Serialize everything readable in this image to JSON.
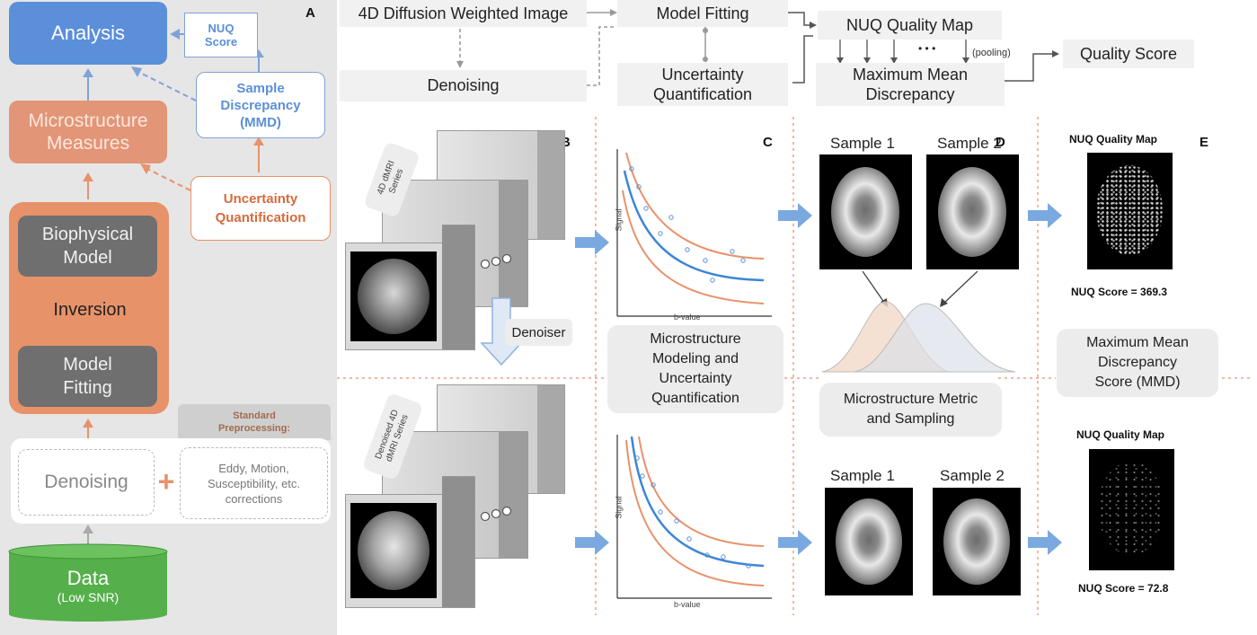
{
  "panel_letters": {
    "a": "A",
    "b": "B",
    "c": "C",
    "d": "D",
    "e": "E"
  },
  "left": {
    "analysis": "Analysis",
    "nuq_score_line1": "NUQ",
    "nuq_score_line2": "Score",
    "sample_discrepancy_line1": "Sample",
    "sample_discrepancy_line2": "Discrepancy",
    "sample_discrepancy_line3": "(MMD)",
    "microstructure_line1": "Microstructure",
    "microstructure_line2": "Measures",
    "uncertainty_line1": "Uncertainty",
    "uncertainty_line2": "Quantification",
    "biophysical_line1": "Biophysical",
    "biophysical_line2": "Model",
    "inversion": "Inversion",
    "model_fitting_line1": "Model",
    "model_fitting_line2": "Fitting",
    "standard_line1": "Standard",
    "standard_line2": "Preprocessing:",
    "denoising": "Denoising",
    "plus": "+",
    "corrections_line1": "Eddy, Motion,",
    "corrections_line2": "Susceptibility, etc.",
    "corrections_line3": "corrections",
    "data_line1": "Data",
    "data_line2": "(Low SNR)"
  },
  "top": {
    "dwi": "4D Diffusion Weighted Image",
    "model_fitting": "Model Fitting",
    "nuq_quality_map": "NUQ Quality Map",
    "dots": "• • •",
    "pooling": "(pooling)",
    "denoising": "Denoising",
    "uncertainty_line1": "Uncertainty",
    "uncertainty_line2": "Quantification",
    "mmd_line1": "Maximum Mean",
    "mmd_line2": "Discrepancy",
    "quality_score": "Quality Score"
  },
  "panelB": {
    "series_line1": "4D dMRI",
    "series_line2": "Series",
    "denoiser": "Denoiser",
    "denoised_line1": "Denoised 4D",
    "denoised_line2": "dMRI Series"
  },
  "panelC": {
    "signal": "Signal",
    "bvalue": "b-value",
    "label_line1": "Microstructure",
    "label_line2": "Modeling and",
    "label_line3": "Uncertainty",
    "label_line4": "Quantification"
  },
  "panelD": {
    "sample1": "Sample 1",
    "sample2": "Sample 2",
    "label_line1": "Microstructure Metric",
    "label_line2": "and Sampling"
  },
  "panelE": {
    "map_title": "NUQ Quality Map",
    "score_top": "NUQ Score = 369.3",
    "score_bottom": "NUQ Score = 72.8",
    "mmd_line1": "Maximum Mean",
    "mmd_line2": "Discrepancy",
    "mmd_line3": "Score (MMD)"
  },
  "colors": {
    "accent_blue": "#5b8fd9",
    "orange": "#e8926a",
    "green": "#55b04b",
    "curve_blue": "#3d86d6"
  }
}
